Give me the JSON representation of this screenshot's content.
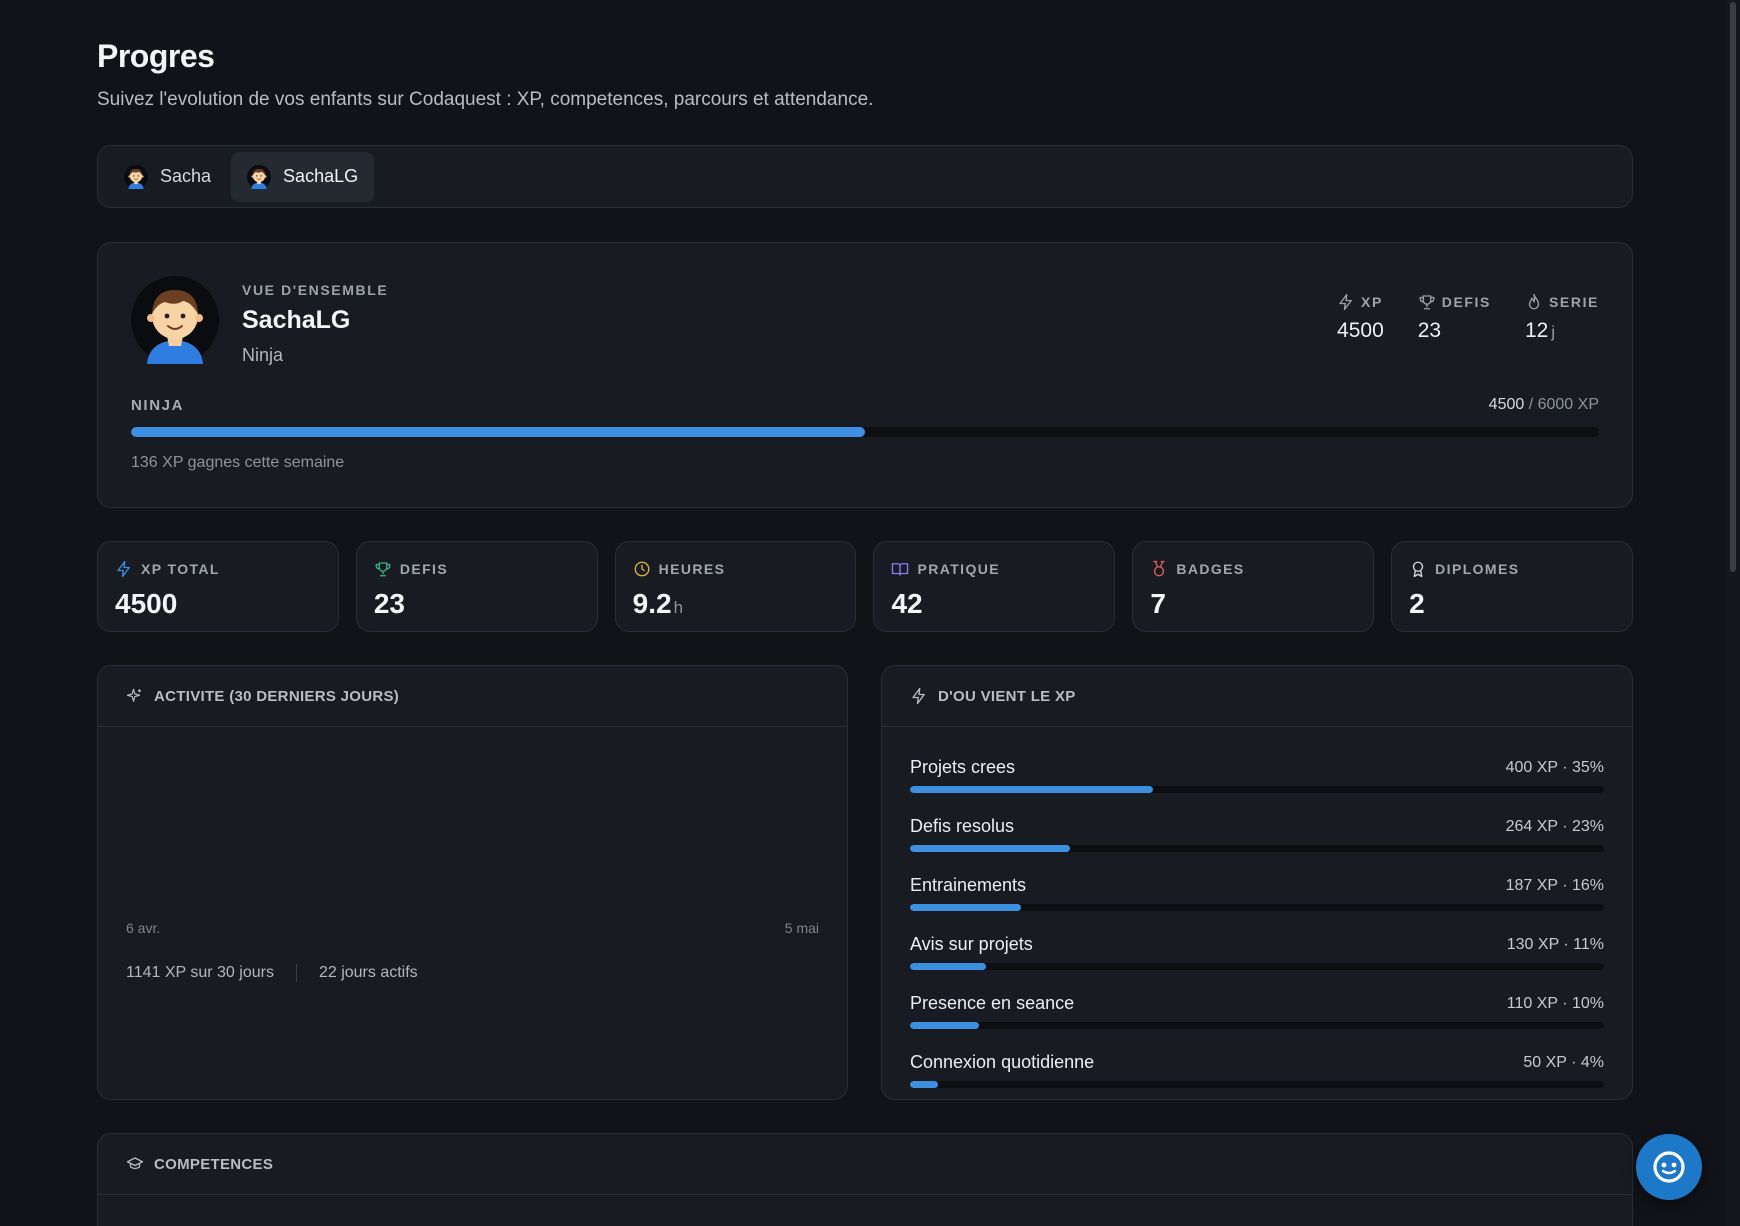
{
  "page": {
    "title": "Progres",
    "subtitle": "Suivez l'evolution de vos enfants sur Codaquest : XP, competences, parcours et attendance."
  },
  "kids": [
    {
      "name": "Sacha",
      "active": false
    },
    {
      "name": "SachaLG",
      "active": true
    }
  ],
  "overview": {
    "eyebrow": "VUE D'ENSEMBLE",
    "name": "SachaLG",
    "rank": "Ninja",
    "stats": [
      {
        "label": "XP",
        "value": "4500",
        "unit": "",
        "icon": "bolt-icon"
      },
      {
        "label": "DEFIS",
        "value": "23",
        "unit": "",
        "icon": "trophy-icon"
      },
      {
        "label": "SERIE",
        "value": "12",
        "unit": "j",
        "icon": "flame-icon"
      }
    ],
    "progress": {
      "rank_label": "NINJA",
      "current": "4500",
      "target_text": "/ 6000 XP",
      "fraction": 0.5,
      "week_text": "136 XP gagnes cette semaine"
    }
  },
  "stat_cards": [
    {
      "label": "XP TOTAL",
      "value": "4500",
      "unit": "",
      "icon": "bolt-icon",
      "color": "#3d8fe0"
    },
    {
      "label": "DEFIS",
      "value": "23",
      "unit": "",
      "icon": "trophy-icon",
      "color": "#3fb27f"
    },
    {
      "label": "HEURES",
      "value": "9.2",
      "unit": "h",
      "icon": "clock-icon",
      "color": "#e3b341"
    },
    {
      "label": "PRATIQUE",
      "value": "42",
      "unit": "",
      "icon": "book-icon",
      "color": "#8b7cf6"
    },
    {
      "label": "BADGES",
      "value": "7",
      "unit": "",
      "icon": "medal-icon",
      "color": "#e25c5c"
    },
    {
      "label": "DIPLOMES",
      "value": "2",
      "unit": "",
      "icon": "award-icon",
      "color": "#d7d9de"
    }
  ],
  "activity": {
    "title": "ACTIVITE (30 DERNIERS JOURS)",
    "start_label": "6 avr.",
    "end_label": "5 mai",
    "xp_summary": "1141 XP sur 30 jours",
    "active_days": "22 jours actifs"
  },
  "xp_sources": {
    "title": "D'OU VIENT LE XP",
    "items": [
      {
        "name": "Projets crees",
        "amount": "400 XP · 35%",
        "pct": 35
      },
      {
        "name": "Defis resolus",
        "amount": "264 XP · 23%",
        "pct": 23
      },
      {
        "name": "Entrainements",
        "amount": "187 XP · 16%",
        "pct": 16
      },
      {
        "name": "Avis sur projets",
        "amount": "130 XP · 11%",
        "pct": 11
      },
      {
        "name": "Presence en seance",
        "amount": "110 XP · 10%",
        "pct": 10
      },
      {
        "name": "Connexion quotidienne",
        "amount": "50 XP · 4%",
        "pct": 4
      }
    ]
  },
  "competences": {
    "title": "COMPETENCES"
  },
  "colors": {
    "accent": "#3d8fe0",
    "background": "#111318",
    "card": "#181b21",
    "fab": "#1e78c8"
  }
}
